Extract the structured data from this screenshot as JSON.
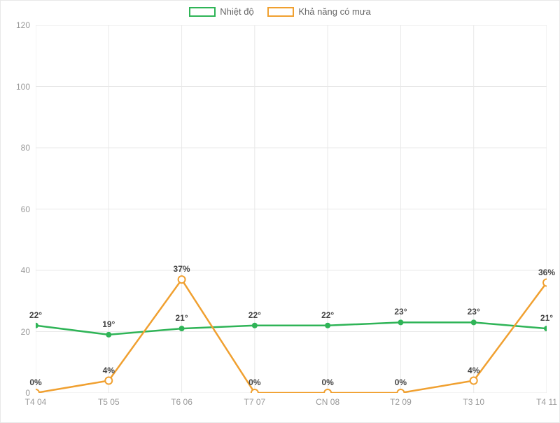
{
  "chart": {
    "type": "line",
    "background_color": "#ffffff",
    "grid_color": "#e8e8e8",
    "axis_label_color": "#999999",
    "data_label_color": "#444444",
    "data_label_fontsize": 12,
    "axis_label_fontsize": 12,
    "legend_fontsize": 13,
    "ylim": [
      0,
      120
    ],
    "ytick_step": 20,
    "yticks": [
      0,
      20,
      40,
      60,
      80,
      100,
      120
    ],
    "categories": [
      "T4 04",
      "T5 05",
      "T6 06",
      "T7 07",
      "CN 08",
      "T2 09",
      "T3 10",
      "T4 11"
    ],
    "series": [
      {
        "name": "Nhiệt độ",
        "color": "#2fb457",
        "line_width": 2.5,
        "marker": "circle",
        "marker_size": 4,
        "label_suffix": "°",
        "label_offset_y": -8,
        "values": [
          22,
          19,
          21,
          22,
          22,
          23,
          23,
          21
        ]
      },
      {
        "name": "Khả năng có mưa",
        "color": "#f0a030",
        "line_width": 2.5,
        "marker": "circle-open",
        "marker_size": 5,
        "label_suffix": "%",
        "label_offset_y": -8,
        "values": [
          0,
          4,
          37,
          0,
          0,
          0,
          4,
          36
        ]
      }
    ]
  }
}
